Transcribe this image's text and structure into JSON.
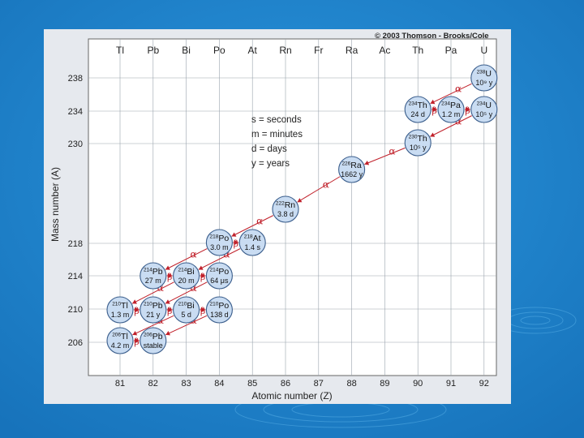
{
  "copyright": "© 2003 Thomson - Brooks/Cole",
  "axis": {
    "x_label": "Atomic number (Z)",
    "y_label": "Mass number (A)",
    "x_ticks": [
      "81",
      "82",
      "83",
      "84",
      "85",
      "86",
      "87",
      "88",
      "89",
      "90",
      "91",
      "92"
    ],
    "y_ticks": [
      "238",
      "234",
      "230",
      "218",
      "214",
      "210",
      "206"
    ],
    "elements": [
      "Tl",
      "Pb",
      "Bi",
      "Po",
      "At",
      "Rn",
      "Fr",
      "Ra",
      "Ac",
      "Th",
      "Pa",
      "U"
    ]
  },
  "legend": [
    "s = seconds",
    "m = minutes",
    "d = days",
    "y = years"
  ],
  "nuclides": [
    {
      "mass": "238",
      "sym": "U",
      "half": "10⁹ y",
      "z": 92,
      "a": 238
    },
    {
      "mass": "234",
      "sym": "Th",
      "half": "24 d",
      "z": 90,
      "a": 234
    },
    {
      "mass": "234",
      "sym": "Pa",
      "half": "1.2 m",
      "z": 91,
      "a": 234
    },
    {
      "mass": "234",
      "sym": "U",
      "half": "10⁵ y",
      "z": 92,
      "a": 234
    },
    {
      "mass": "230",
      "sym": "Th",
      "half": "10⁵ y",
      "z": 90,
      "a": 230
    },
    {
      "mass": "226",
      "sym": "Ra",
      "half": "1662 y",
      "z": 88,
      "a": 226
    },
    {
      "mass": "222",
      "sym": "Rn",
      "half": "3.8 d",
      "z": 86,
      "a": 222
    },
    {
      "mass": "218",
      "sym": "Po",
      "half": "3.0 m",
      "z": 84,
      "a": 218
    },
    {
      "mass": "218",
      "sym": "At",
      "half": "1.4 s",
      "z": 85,
      "a": 218
    },
    {
      "mass": "214",
      "sym": "Pb",
      "half": "27 m",
      "z": 82,
      "a": 214
    },
    {
      "mass": "214",
      "sym": "Bi",
      "half": "20 m",
      "z": 83,
      "a": 214
    },
    {
      "mass": "214",
      "sym": "Po",
      "half": "64 μs",
      "z": 84,
      "a": 214
    },
    {
      "mass": "210",
      "sym": "Tl",
      "half": "1.3 m",
      "z": 81,
      "a": 210
    },
    {
      "mass": "210",
      "sym": "Pb",
      "half": "21 y",
      "z": 82,
      "a": 210
    },
    {
      "mass": "210",
      "sym": "Bi",
      "half": "5 d",
      "z": 83,
      "a": 210
    },
    {
      "mass": "210",
      "sym": "Po",
      "half": "138 d",
      "z": 84,
      "a": 210
    },
    {
      "mass": "206",
      "sym": "Tl",
      "half": "4.2 m",
      "z": 81,
      "a": 206
    },
    {
      "mass": "206",
      "sym": "Pb",
      "half": "stable",
      "z": 82,
      "a": 206
    }
  ],
  "decays": [
    {
      "type": "α",
      "from": [
        92,
        238
      ],
      "to": [
        90,
        234
      ]
    },
    {
      "type": "β",
      "from": [
        90,
        234
      ],
      "to": [
        91,
        234
      ]
    },
    {
      "type": "β",
      "from": [
        91,
        234
      ],
      "to": [
        92,
        234
      ]
    },
    {
      "type": "α",
      "from": [
        92,
        234
      ],
      "to": [
        90,
        230
      ]
    },
    {
      "type": "α",
      "from": [
        90,
        230
      ],
      "to": [
        88,
        226
      ]
    },
    {
      "type": "α",
      "from": [
        88,
        226
      ],
      "to": [
        86,
        222
      ]
    },
    {
      "type": "α",
      "from": [
        86,
        222
      ],
      "to": [
        84,
        218
      ]
    },
    {
      "type": "β",
      "from": [
        84,
        218
      ],
      "to": [
        85,
        218
      ]
    },
    {
      "type": "α",
      "from": [
        84,
        218
      ],
      "to": [
        82,
        214
      ]
    },
    {
      "type": "α",
      "from": [
        85,
        218
      ],
      "to": [
        83,
        214
      ]
    },
    {
      "type": "β",
      "from": [
        82,
        214
      ],
      "to": [
        83,
        214
      ]
    },
    {
      "type": "β",
      "from": [
        83,
        214
      ],
      "to": [
        84,
        214
      ]
    },
    {
      "type": "α",
      "from": [
        83,
        214
      ],
      "to": [
        81,
        210
      ]
    },
    {
      "type": "α",
      "from": [
        84,
        214
      ],
      "to": [
        82,
        210
      ]
    },
    {
      "type": "β",
      "from": [
        81,
        210
      ],
      "to": [
        82,
        210
      ]
    },
    {
      "type": "β",
      "from": [
        82,
        210
      ],
      "to": [
        83,
        210
      ]
    },
    {
      "type": "β",
      "from": [
        83,
        210
      ],
      "to": [
        84,
        210
      ]
    },
    {
      "type": "α",
      "from": [
        83,
        210
      ],
      "to": [
        81,
        206
      ]
    },
    {
      "type": "α",
      "from": [
        84,
        210
      ],
      "to": [
        82,
        206
      ]
    },
    {
      "type": "β",
      "from": [
        81,
        206
      ],
      "to": [
        82,
        206
      ]
    }
  ],
  "colors": {
    "background": "#1f86cf",
    "panel": "#e6e9ee",
    "nuclide_fill": "#c9dcf2",
    "nuclide_stroke": "#3b5e8c",
    "arrow": "#c0202a",
    "grid": "#9aa3ad"
  }
}
